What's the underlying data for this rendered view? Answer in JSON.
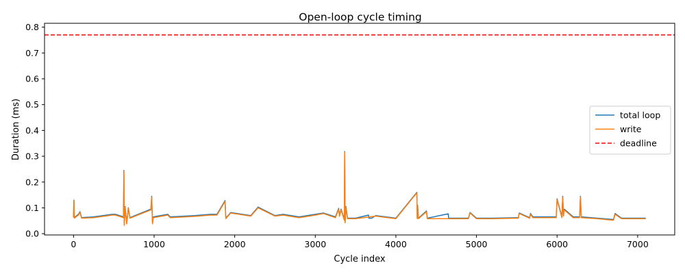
{
  "chart_data": {
    "type": "line",
    "title": "Open-loop cycle timing",
    "xlabel": "Cycle index",
    "ylabel": "Duration (ms)",
    "xlim": [
      -360,
      7460
    ],
    "ylim": [
      -0.005,
      0.815
    ],
    "xticks": [
      0,
      1000,
      2000,
      3000,
      4000,
      5000,
      6000,
      7000
    ],
    "yticks": [
      0.0,
      0.1,
      0.2,
      0.3,
      0.4,
      0.5,
      0.6,
      0.7,
      0.8
    ],
    "xtick_labels": [
      "0",
      "1000",
      "2000",
      "3000",
      "4000",
      "5000",
      "6000",
      "7000"
    ],
    "ytick_labels": [
      "0.0",
      "0.1",
      "0.2",
      "0.3",
      "0.4",
      "0.5",
      "0.6",
      "0.7",
      "0.8"
    ],
    "grid": false,
    "legend_position": "center-right",
    "series": [
      {
        "name": "total loop",
        "color": "#1f77b4",
        "style": "solid",
        "x": [
          0,
          5,
          10,
          60,
          80,
          100,
          250,
          480,
          520,
          620,
          625,
          630,
          640,
          660,
          680,
          700,
          960,
          970,
          980,
          990,
          1170,
          1200,
          1500,
          1700,
          1780,
          1880,
          1890,
          1950,
          2200,
          2290,
          2500,
          2600,
          2800,
          3000,
          3100,
          3250,
          3290,
          3300,
          3320,
          3360,
          3365,
          3370,
          3380,
          3400,
          3500,
          3660,
          3665,
          3700,
          3750,
          4000,
          4260,
          4265,
          4270,
          4280,
          4380,
          4390,
          4650,
          4655,
          4900,
          4920,
          5000,
          5200,
          5520,
          5530,
          5660,
          5670,
          5700,
          5720,
          5800,
          5990,
          6000,
          6060,
          6070,
          6080,
          6090,
          6200,
          6280,
          6290,
          6300,
          6500,
          6700,
          6720,
          6800,
          7000,
          7100
        ],
        "y": [
          0.065,
          0.13,
          0.062,
          0.075,
          0.085,
          0.062,
          0.065,
          0.075,
          0.075,
          0.065,
          0.245,
          0.035,
          0.105,
          0.04,
          0.1,
          0.062,
          0.095,
          0.145,
          0.04,
          0.065,
          0.075,
          0.065,
          0.07,
          0.075,
          0.075,
          0.128,
          0.06,
          0.082,
          0.07,
          0.103,
          0.07,
          0.075,
          0.065,
          0.075,
          0.08,
          0.065,
          0.098,
          0.07,
          0.095,
          0.055,
          0.318,
          0.045,
          0.105,
          0.06,
          0.06,
          0.072,
          0.06,
          0.06,
          0.07,
          0.06,
          0.16,
          0.06,
          0.11,
          0.06,
          0.088,
          0.06,
          0.077,
          0.06,
          0.06,
          0.082,
          0.06,
          0.06,
          0.062,
          0.08,
          0.062,
          0.078,
          0.065,
          0.065,
          0.065,
          0.065,
          0.135,
          0.065,
          0.145,
          0.07,
          0.095,
          0.065,
          0.065,
          0.145,
          0.065,
          0.06,
          0.055,
          0.078,
          0.06,
          0.06,
          0.06
        ]
      },
      {
        "name": "write",
        "color": "#ff7f0e",
        "style": "solid",
        "x": [
          0,
          5,
          10,
          60,
          80,
          100,
          250,
          480,
          520,
          620,
          625,
          630,
          640,
          660,
          680,
          700,
          960,
          970,
          980,
          990,
          1170,
          1200,
          1500,
          1700,
          1780,
          1880,
          1890,
          1950,
          2200,
          2290,
          2500,
          2600,
          2800,
          3000,
          3100,
          3250,
          3290,
          3300,
          3320,
          3360,
          3365,
          3370,
          3380,
          3400,
          3500,
          3750,
          4000,
          4260,
          4265,
          4270,
          4280,
          4380,
          4390,
          4900,
          4920,
          5000,
          5200,
          5520,
          5530,
          5660,
          5670,
          5700,
          5720,
          5800,
          5990,
          6000,
          6060,
          6070,
          6080,
          6090,
          6200,
          6280,
          6290,
          6300,
          6500,
          6700,
          6720,
          6800,
          7000,
          7100
        ],
        "y": [
          0.062,
          0.128,
          0.06,
          0.072,
          0.082,
          0.06,
          0.062,
          0.072,
          0.072,
          0.062,
          0.242,
          0.032,
          0.102,
          0.038,
          0.098,
          0.06,
          0.092,
          0.142,
          0.038,
          0.062,
          0.072,
          0.062,
          0.067,
          0.072,
          0.072,
          0.125,
          0.058,
          0.08,
          0.068,
          0.1,
          0.068,
          0.072,
          0.062,
          0.072,
          0.078,
          0.062,
          0.095,
          0.067,
          0.092,
          0.052,
          0.315,
          0.042,
          0.102,
          0.058,
          0.058,
          0.068,
          0.058,
          0.158,
          0.058,
          0.108,
          0.058,
          0.085,
          0.058,
          0.058,
          0.08,
          0.058,
          0.058,
          0.06,
          0.078,
          0.06,
          0.075,
          0.062,
          0.062,
          0.062,
          0.062,
          0.132,
          0.062,
          0.142,
          0.068,
          0.092,
          0.062,
          0.062,
          0.142,
          0.062,
          0.058,
          0.052,
          0.075,
          0.058,
          0.058,
          0.058
        ]
      },
      {
        "name": "deadline",
        "color": "#ff0000",
        "style": "dashed",
        "x": [
          -360,
          7460
        ],
        "y": [
          0.77,
          0.77
        ]
      }
    ]
  }
}
